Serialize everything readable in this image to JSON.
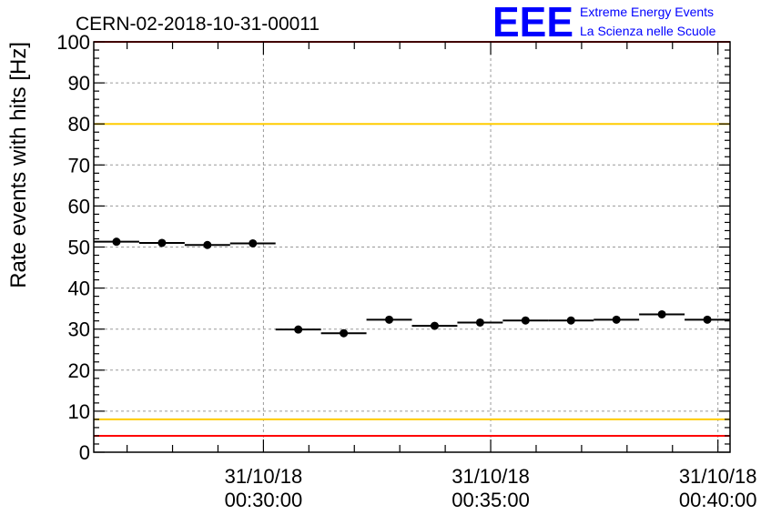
{
  "chart_data": {
    "type": "scatter",
    "title": "CERN-02-2018-10-31-00011",
    "ylabel": "Rate events with hits [Hz]",
    "xlabel": "",
    "ylim": [
      0,
      100
    ],
    "yticks": [
      0,
      10,
      20,
      30,
      40,
      50,
      60,
      70,
      80,
      90,
      100
    ],
    "xlim": [
      "31/10/18 00:26:16",
      "31/10/18 00:40:16"
    ],
    "xticks": [
      {
        "time": "31/10/18 00:30:00",
        "date": "31/10/18",
        "clock": "00:30:00"
      },
      {
        "time": "31/10/18 00:35:00",
        "date": "31/10/18",
        "clock": "00:35:00"
      },
      {
        "time": "31/10/18 00:40:00",
        "date": "31/10/18",
        "clock": "00:40:00"
      }
    ],
    "grid": true,
    "series": [
      {
        "color": "#000000",
        "points": [
          {
            "x_start": "31/10/18 00:26:16",
            "x_end": "31/10/18 00:27:16",
            "y": 51.3
          },
          {
            "x_start": "31/10/18 00:27:16",
            "x_end": "31/10/18 00:28:16",
            "y": 51.0
          },
          {
            "x_start": "31/10/18 00:28:16",
            "x_end": "31/10/18 00:29:16",
            "y": 50.5
          },
          {
            "x_start": "31/10/18 00:29:16",
            "x_end": "31/10/18 00:30:16",
            "y": 50.9
          },
          {
            "x_start": "31/10/18 00:30:16",
            "x_end": "31/10/18 00:31:16",
            "y": 29.9
          },
          {
            "x_start": "31/10/18 00:31:16",
            "x_end": "31/10/18 00:32:16",
            "y": 29.0
          },
          {
            "x_start": "31/10/18 00:32:16",
            "x_end": "31/10/18 00:33:16",
            "y": 32.3
          },
          {
            "x_start": "31/10/18 00:33:16",
            "x_end": "31/10/18 00:34:16",
            "y": 30.8
          },
          {
            "x_start": "31/10/18 00:34:16",
            "x_end": "31/10/18 00:35:16",
            "y": 31.6
          },
          {
            "x_start": "31/10/18 00:35:16",
            "x_end": "31/10/18 00:36:16",
            "y": 32.1
          },
          {
            "x_start": "31/10/18 00:36:16",
            "x_end": "31/10/18 00:37:16",
            "y": 32.1
          },
          {
            "x_start": "31/10/18 00:37:16",
            "x_end": "31/10/18 00:38:16",
            "y": 32.3
          },
          {
            "x_start": "31/10/18 00:38:16",
            "x_end": "31/10/18 00:39:16",
            "y": 33.6
          },
          {
            "x_start": "31/10/18 00:39:16",
            "x_end": "31/10/18 00:40:16",
            "y": 32.3
          }
        ]
      }
    ],
    "reference_lines": [
      {
        "y": 100,
        "color": "#ff0000"
      },
      {
        "y": 80,
        "color": "#ffcc00"
      },
      {
        "y": 8,
        "color": "#ffcc00"
      },
      {
        "y": 4,
        "color": "#ff0000"
      }
    ],
    "logo": {
      "mark": "EEE",
      "line1": "Extreme Energy Events",
      "line2": "La Scienza nelle Scuole",
      "color": "#0000ff"
    }
  }
}
